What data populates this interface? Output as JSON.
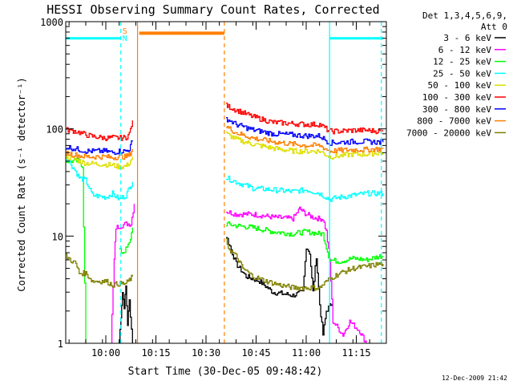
{
  "chart_data": {
    "type": "line",
    "title": "HESSI Observing Summary Count Rates, Corrected",
    "xlabel": "Start Time (30-Dec-05 09:48:42)",
    "ylabel": "Corrected Count Rate (s⁻¹ detector⁻¹)",
    "ylog": true,
    "ylim": [
      1,
      1000
    ],
    "xlim": [
      -6,
      90
    ],
    "x_units": "minutes after 09:54:00 UT",
    "yticks": [
      {
        "v": 1,
        "label": "1"
      },
      {
        "v": 10,
        "label": "10"
      },
      {
        "v": 100,
        "label": "100"
      },
      {
        "v": 1000,
        "label": "1000"
      }
    ],
    "xticks": [
      {
        "v": 6,
        "label": "10:00"
      },
      {
        "v": 21,
        "label": "10:15"
      },
      {
        "v": 36,
        "label": "10:30"
      },
      {
        "v": 51,
        "label": "10:45"
      },
      {
        "v": 66,
        "label": "11:00"
      },
      {
        "v": 81,
        "label": "11:15"
      }
    ],
    "legend_header": [
      "Det 1,3,4,5,6,9,",
      "Att 0"
    ],
    "legend_position": "right",
    "footer_date": "12-Dec-2009 21:42",
    "flag_labels": [
      {
        "text": "S",
        "color": "#ff7f00"
      },
      {
        "text": "N",
        "color": "#00ffff"
      }
    ],
    "series": [
      {
        "name": "3 - 6 keV",
        "color": "#000000",
        "segments": [
          [
            [
              10.0,
              1.0
            ],
            [
              10.5,
              1.8
            ],
            [
              11.0,
              3.0
            ],
            [
              11.5,
              2.2
            ],
            [
              12.0,
              3.4
            ],
            [
              12.5,
              1.5
            ],
            [
              13.0,
              2.5
            ],
            [
              14.0,
              1.0
            ]
          ],
          [
            [
              42.0,
              10.0
            ],
            [
              43.5,
              7.5
            ],
            [
              45,
              5.5
            ],
            [
              48,
              4.2
            ],
            [
              52,
              3.8
            ],
            [
              56,
              3.0
            ],
            [
              62,
              2.8
            ],
            [
              65,
              3.0
            ],
            [
              66,
              8.0
            ],
            [
              67,
              7.0
            ],
            [
              68,
              3.0
            ],
            [
              69,
              6.5
            ],
            [
              70,
              2.3
            ],
            [
              71,
              1.2
            ],
            [
              72,
              2.0
            ],
            [
              74,
              2.5
            ]
          ]
        ]
      },
      {
        "name": "6 - 12 keV",
        "color": "#ff00ff",
        "segments": [
          [
            [
              7.5,
              1.0
            ],
            [
              8.5,
              6.0
            ],
            [
              9.0,
              12.0
            ],
            [
              12.0,
              13.0
            ],
            [
              13.5,
              13.0
            ],
            [
              14.5,
              20.0
            ]
          ],
          [
            [
              42,
              17
            ],
            [
              45,
              16
            ],
            [
              50,
              16
            ],
            [
              56,
              15
            ],
            [
              62,
              14.5
            ],
            [
              64,
              18
            ],
            [
              66,
              16
            ],
            [
              68,
              15
            ],
            [
              70,
              14.5
            ],
            [
              71,
              14.5
            ],
            [
              72,
              11
            ],
            [
              73,
              6
            ],
            [
              74,
              1.6
            ],
            [
              77,
              1.2
            ],
            [
              79,
              1.6
            ],
            [
              82,
              1.3
            ],
            [
              84,
              1.0
            ]
          ]
        ]
      },
      {
        "name": "12 - 25 keV",
        "color": "#00ff00",
        "segments": [
          [
            [
              -6,
              50
            ],
            [
              -2,
              50
            ],
            [
              -1,
              45
            ],
            [
              0,
              1.0
            ]
          ],
          [
            [
              10,
              7.5
            ],
            [
              11,
              7
            ],
            [
              12,
              7.5
            ],
            [
              13,
              8.5
            ],
            [
              14,
              12
            ]
          ],
          [
            [
              42,
              13
            ],
            [
              45,
              12.5
            ],
            [
              50,
              12
            ],
            [
              56,
              11
            ],
            [
              62,
              10.5
            ],
            [
              66,
              11
            ],
            [
              70,
              10.5
            ],
            [
              71,
              10.5
            ],
            [
              73,
              6
            ],
            [
              76,
              5.8
            ],
            [
              80,
              6.2
            ],
            [
              84,
              6.0
            ],
            [
              88,
              6.5
            ],
            [
              89,
              6.5
            ]
          ]
        ]
      },
      {
        "name": "25 - 50 keV",
        "color": "#00ffff",
        "segments": [
          [
            [
              -6,
              55
            ],
            [
              -3,
              40
            ],
            [
              -2,
              35
            ],
            [
              0,
              33
            ],
            [
              2,
              24
            ],
            [
              6,
              23
            ],
            [
              8,
              25
            ],
            [
              10,
              22
            ],
            [
              12,
              24
            ],
            [
              13,
              28
            ],
            [
              14,
              32
            ]
          ],
          [
            [
              42,
              35
            ],
            [
              45,
              32
            ],
            [
              50,
              28
            ],
            [
              56,
              27
            ],
            [
              62,
              26
            ],
            [
              66,
              27
            ],
            [
              70,
              25
            ],
            [
              73,
              22
            ],
            [
              76,
              23
            ],
            [
              80,
              24
            ],
            [
              84,
              25
            ],
            [
              88,
              25
            ],
            [
              89,
              25
            ]
          ]
        ]
      },
      {
        "name": "50 - 100 keV",
        "color": "#dfdf00",
        "segments": [
          [
            [
              -6,
              55
            ],
            [
              -2,
              50
            ],
            [
              0,
              48
            ],
            [
              4,
              47
            ],
            [
              8,
              46
            ],
            [
              10,
              44
            ],
            [
              12,
              45
            ],
            [
              13,
              48
            ],
            [
              14,
              55
            ]
          ],
          [
            [
              42,
              90
            ],
            [
              45,
              80
            ],
            [
              50,
              72
            ],
            [
              56,
              66
            ],
            [
              62,
              62
            ],
            [
              66,
              62
            ],
            [
              70,
              62
            ],
            [
              73,
              55
            ],
            [
              76,
              56
            ],
            [
              80,
              58
            ],
            [
              84,
              58
            ],
            [
              88,
              60
            ],
            [
              89,
              60
            ]
          ]
        ]
      },
      {
        "name": "100 - 300 keV",
        "color": "#ff0000",
        "segments": [
          [
            [
              -6,
              98
            ],
            [
              -3,
              95
            ],
            [
              0,
              88
            ],
            [
              2,
              85
            ],
            [
              6,
              82
            ],
            [
              8,
              83
            ],
            [
              10,
              82
            ],
            [
              12,
              83
            ],
            [
              13,
              90
            ],
            [
              14,
              120
            ]
          ],
          [
            [
              42,
              165
            ],
            [
              45,
              150
            ],
            [
              50,
              130
            ],
            [
              56,
              115
            ],
            [
              62,
              112
            ],
            [
              66,
              110
            ],
            [
              70,
              110
            ],
            [
              73,
              95
            ],
            [
              76,
              95
            ],
            [
              80,
              97
            ],
            [
              84,
              97
            ],
            [
              88,
              95
            ],
            [
              89,
              95
            ]
          ]
        ]
      },
      {
        "name": "300 - 800 keV",
        "color": "#0000ff",
        "segments": [
          [
            [
              -6,
              68
            ],
            [
              -3,
              65
            ],
            [
              0,
              62
            ],
            [
              2,
              62
            ],
            [
              6,
              62
            ],
            [
              8,
              60
            ],
            [
              10,
              62
            ],
            [
              12,
              62
            ],
            [
              13,
              65
            ],
            [
              14,
              78
            ]
          ],
          [
            [
              42,
              125
            ],
            [
              45,
              110
            ],
            [
              50,
              98
            ],
            [
              56,
              90
            ],
            [
              62,
              88
            ],
            [
              66,
              86
            ],
            [
              70,
              86
            ],
            [
              73,
              74
            ],
            [
              76,
              75
            ],
            [
              80,
              76
            ],
            [
              84,
              76
            ],
            [
              88,
              75
            ],
            [
              89,
              75
            ]
          ]
        ]
      },
      {
        "name": "800 - 7000 keV",
        "color": "#ff7f00",
        "segments": [
          [
            [
              -6,
              60
            ],
            [
              -3,
              57
            ],
            [
              0,
              55
            ],
            [
              2,
              55
            ],
            [
              6,
              55
            ],
            [
              8,
              54
            ],
            [
              10,
              55
            ],
            [
              12,
              55
            ],
            [
              13,
              57
            ],
            [
              14,
              65
            ]
          ],
          [
            [
              42,
              105
            ],
            [
              45,
              92
            ],
            [
              50,
              82
            ],
            [
              56,
              76
            ],
            [
              62,
              72
            ],
            [
              66,
              70
            ],
            [
              70,
              70
            ],
            [
              73,
              62
            ],
            [
              76,
              63
            ],
            [
              80,
              64
            ],
            [
              84,
              64
            ],
            [
              88,
              65
            ],
            [
              89,
              65
            ]
          ]
        ]
      },
      {
        "name": "7000 - 20000 keV",
        "color": "#808000",
        "segments": [
          [
            [
              -6,
              6.5
            ],
            [
              -3,
              5.5
            ],
            [
              -2,
              4.5
            ],
            [
              0,
              4.5
            ],
            [
              2,
              3.8
            ],
            [
              6,
              3.8
            ],
            [
              8,
              3.5
            ],
            [
              10,
              3.6
            ],
            [
              12,
              3.6
            ],
            [
              14,
              4.2
            ]
          ],
          [
            [
              42,
              9.0
            ],
            [
              43,
              7.5
            ],
            [
              45,
              6.5
            ],
            [
              47,
              5.0
            ],
            [
              50,
              4.2
            ],
            [
              54,
              3.8
            ],
            [
              58,
              3.5
            ],
            [
              62,
              3.3
            ],
            [
              66,
              3.3
            ],
            [
              70,
              3.3
            ],
            [
              73,
              4.0
            ],
            [
              76,
              4.5
            ],
            [
              80,
              5.0
            ],
            [
              84,
              5.2
            ],
            [
              88,
              5.5
            ],
            [
              89,
              5.5
            ]
          ]
        ]
      }
    ],
    "flag_bars": [
      {
        "name": "SAA",
        "color": "#00ffff",
        "y": 700,
        "ranges": [
          [
            -6,
            10.5
          ],
          [
            73,
            89
          ]
        ]
      },
      {
        "name": "Night",
        "color": "#ff7f00",
        "y": 780,
        "ranges": [
          [
            16,
            41.5
          ]
        ]
      }
    ],
    "vlines": [
      {
        "x": 10.5,
        "color": "#00ffff",
        "style": "dashed"
      },
      {
        "x": 15.5,
        "color": "#ff7f00",
        "style": "solid"
      },
      {
        "x": 41.5,
        "color": "#ff7f00",
        "style": "dashed"
      },
      {
        "x": 73,
        "color": "#00ffff",
        "style": "solid"
      },
      {
        "x": 88.5,
        "color": "#00ffff",
        "style": "dashed"
      }
    ]
  }
}
